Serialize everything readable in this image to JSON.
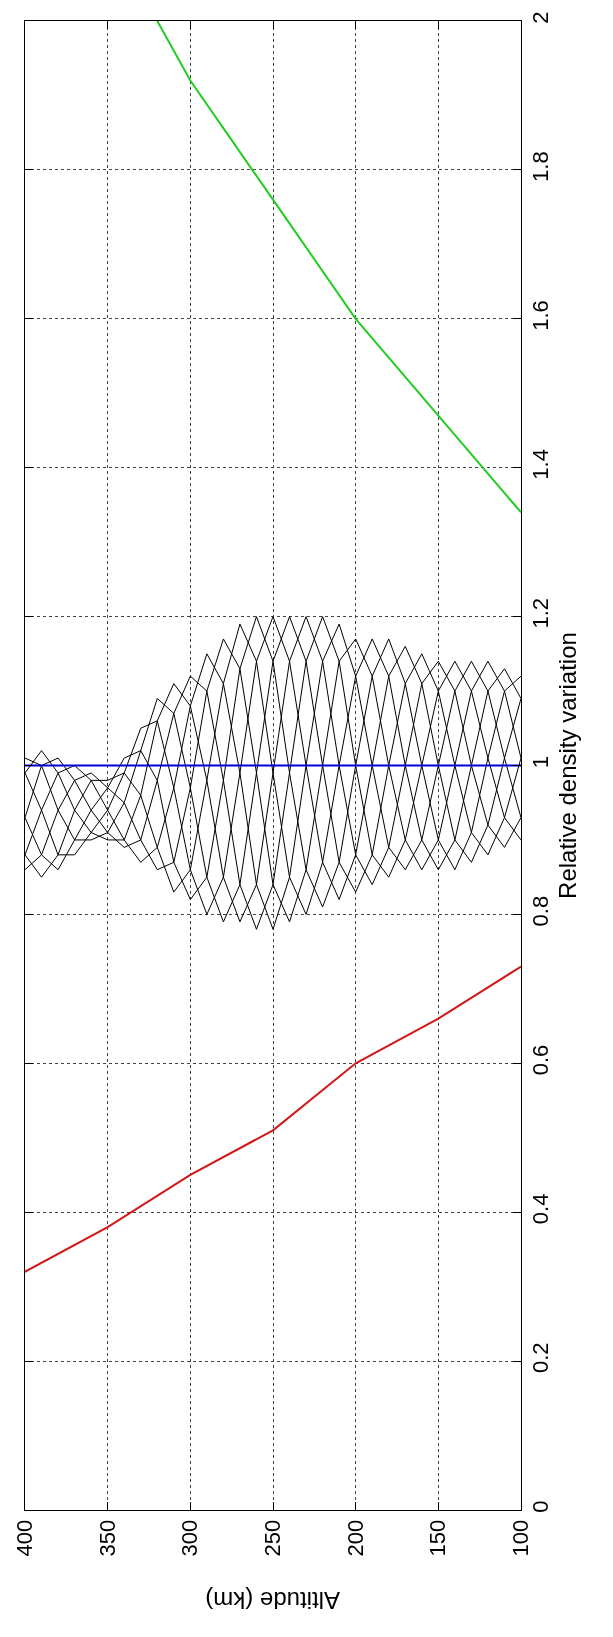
{
  "chart_data": {
    "type": "line",
    "xlabel": "Altitude (km)",
    "ylabel": "Relative density variation",
    "xlim": [
      400,
      100
    ],
    "xticks": [
      400,
      350,
      300,
      250,
      200,
      150,
      100
    ],
    "ylim": [
      0,
      2
    ],
    "yticks": [
      0,
      0.2,
      0.4,
      0.6,
      0.8,
      1,
      1.2,
      1.4,
      1.6,
      1.8,
      2
    ],
    "grid": true,
    "x": [
      400,
      390,
      380,
      370,
      360,
      350,
      340,
      330,
      320,
      310,
      300,
      290,
      280,
      270,
      260,
      250,
      240,
      230,
      220,
      210,
      200,
      190,
      180,
      170,
      160,
      150,
      140,
      130,
      120,
      110,
      100
    ],
    "series": [
      {
        "color": "#000000",
        "values": [
          1.01,
          1.0,
          0.94,
          0.9,
          0.9,
          0.91,
          0.95,
          1.02,
          1.09,
          1.07,
          0.97,
          0.85,
          0.79,
          0.84,
          0.99,
          1.14,
          1.2,
          1.14,
          1.0,
          0.87,
          0.83,
          0.88,
          1.0,
          1.11,
          1.15,
          1.1,
          1.0,
          0.91,
          0.88,
          0.93,
          1.01
        ]
      },
      {
        "color": "#000000",
        "values": [
          0.99,
          0.94,
          0.88,
          0.88,
          0.91,
          0.94,
          0.99,
          1.05,
          1.06,
          0.97,
          0.86,
          0.8,
          0.85,
          0.99,
          1.14,
          1.2,
          1.14,
          1.0,
          0.87,
          0.82,
          0.88,
          1.0,
          1.12,
          1.16,
          1.11,
          1.0,
          0.9,
          0.87,
          0.92,
          1.01,
          1.09
        ]
      },
      {
        "color": "#000000",
        "values": [
          0.93,
          0.88,
          0.86,
          0.9,
          0.94,
          0.97,
          1.01,
          1.02,
          0.98,
          0.87,
          0.82,
          0.85,
          0.98,
          1.13,
          1.2,
          1.14,
          0.99,
          0.86,
          0.81,
          0.87,
          1.0,
          1.12,
          1.17,
          1.11,
          1.0,
          0.9,
          0.86,
          0.91,
          1.01,
          1.1,
          1.12
        ]
      },
      {
        "color": "#000000",
        "values": [
          0.88,
          0.85,
          0.88,
          0.94,
          0.98,
          0.98,
          0.99,
          0.96,
          0.89,
          0.83,
          0.86,
          0.98,
          1.11,
          1.19,
          1.14,
          0.99,
          0.85,
          0.8,
          0.87,
          1.0,
          1.12,
          1.17,
          1.12,
          1.0,
          0.9,
          0.86,
          0.9,
          1.0,
          1.1,
          1.13,
          1.09
        ]
      },
      {
        "color": "#000000",
        "values": [
          0.86,
          0.88,
          0.94,
          0.98,
          0.99,
          0.97,
          0.95,
          0.9,
          0.86,
          0.87,
          0.97,
          1.1,
          1.17,
          1.13,
          0.99,
          0.84,
          0.79,
          0.86,
          1.0,
          1.14,
          1.17,
          1.12,
          1.0,
          0.9,
          0.86,
          0.9,
          1.0,
          1.1,
          1.14,
          1.1,
          1.01
        ]
      },
      {
        "color": "#000000",
        "values": [
          0.88,
          0.94,
          0.99,
          1.0,
          0.98,
          0.94,
          0.9,
          0.87,
          0.89,
          0.97,
          1.08,
          1.15,
          1.11,
          0.99,
          0.84,
          0.78,
          0.85,
          1.0,
          1.14,
          1.19,
          1.12,
          1.0,
          0.89,
          0.86,
          0.9,
          1.0,
          1.1,
          1.14,
          1.1,
          1.01,
          0.93
        ]
      },
      {
        "color": "#000000",
        "values": [
          0.93,
          1.0,
          1.01,
          0.98,
          0.94,
          0.91,
          0.89,
          0.9,
          0.98,
          1.07,
          1.12,
          1.1,
          0.98,
          0.84,
          0.78,
          0.84,
          0.99,
          1.14,
          1.2,
          1.14,
          1.0,
          0.88,
          0.85,
          0.9,
          1.0,
          1.1,
          1.14,
          1.1,
          1.01,
          0.93,
          0.9
        ]
      },
      {
        "color": "#000000",
        "values": [
          0.99,
          1.02,
          0.99,
          0.94,
          0.91,
          0.9,
          0.9,
          0.96,
          1.06,
          1.11,
          1.08,
          0.98,
          0.85,
          0.79,
          0.84,
          0.99,
          1.14,
          1.2,
          1.14,
          1.0,
          0.88,
          0.84,
          0.89,
          1.0,
          1.11,
          1.14,
          1.1,
          1.0,
          0.92,
          0.89,
          0.93
        ]
      },
      {
        "color": "#d01818",
        "x": [
          400,
          350,
          300,
          250,
          200,
          150,
          100
        ],
        "values": [
          0.32,
          0.38,
          0.45,
          0.51,
          0.6,
          0.66,
          0.73
        ]
      },
      {
        "color": "#22cc22",
        "x": [
          320,
          300,
          275,
          250,
          200,
          150,
          100
        ],
        "values": [
          2.0,
          1.92,
          1.84,
          1.76,
          1.6,
          1.47,
          1.34
        ]
      },
      {
        "color": "#0000dd",
        "x": [
          400,
          100
        ],
        "values": [
          1,
          1
        ]
      }
    ]
  }
}
